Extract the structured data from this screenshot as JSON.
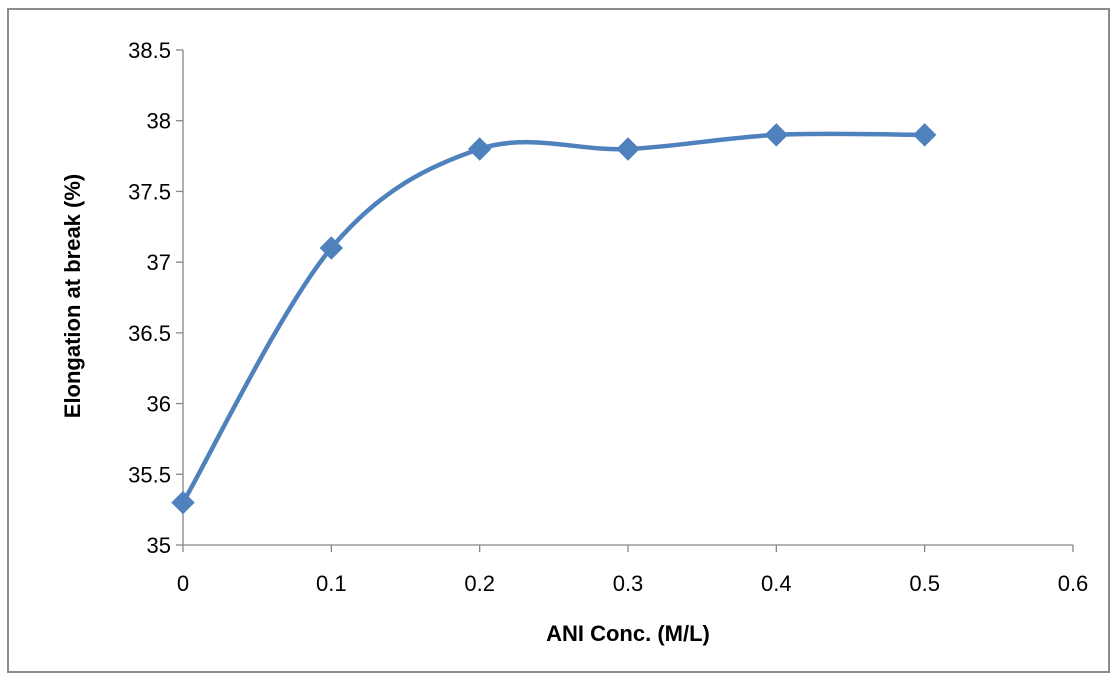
{
  "chart_data": {
    "type": "line",
    "smooth": true,
    "title": "",
    "xlabel": "ANI Conc. (M/L)",
    "ylabel": "Elongation at break (%)",
    "xlim": [
      0,
      0.6
    ],
    "ylim": [
      35,
      38.5
    ],
    "x_ticks": [
      0,
      0.1,
      0.2,
      0.3,
      0.4,
      0.5,
      0.6
    ],
    "x_tick_labels": [
      "0",
      "0.1",
      "0.2",
      "0.3",
      "0.4",
      "0.5",
      "0.6"
    ],
    "y_ticks": [
      35,
      35.5,
      36,
      36.5,
      37,
      37.5,
      38,
      38.5
    ],
    "y_tick_labels": [
      "35",
      "35.5",
      "36",
      "36.5",
      "37",
      "37.5",
      "38",
      "38.5"
    ],
    "grid": false,
    "legend": "none",
    "marker": "diamond",
    "series": [
      {
        "x": [
          0,
          0.1,
          0.2,
          0.3,
          0.4,
          0.5
        ],
        "y": [
          35.3,
          37.1,
          37.8,
          37.8,
          37.9,
          37.9
        ],
        "color": "#4f81bd"
      }
    ]
  }
}
